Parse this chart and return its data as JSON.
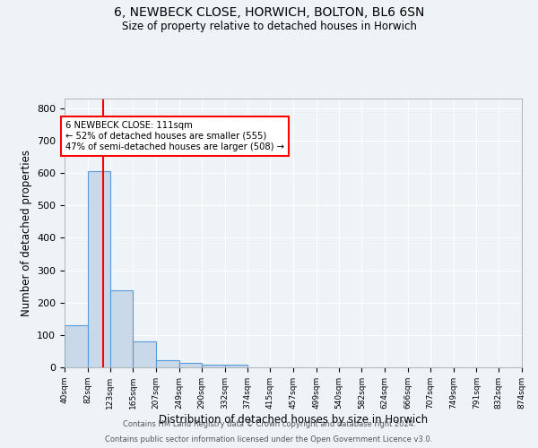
{
  "title_line1": "6, NEWBECK CLOSE, HORWICH, BOLTON, BL6 6SN",
  "title_line2": "Size of property relative to detached houses in Horwich",
  "xlabel": "Distribution of detached houses by size in Horwich",
  "ylabel": "Number of detached properties",
  "bin_edges": [
    40,
    82,
    123,
    165,
    207,
    249,
    290,
    332,
    374,
    415,
    457,
    499,
    540,
    582,
    624,
    666,
    707,
    749,
    791,
    832,
    874
  ],
  "bin_counts": [
    130,
    605,
    238,
    80,
    23,
    15,
    8,
    8,
    0,
    0,
    0,
    0,
    0,
    0,
    0,
    0,
    0,
    0,
    0,
    0
  ],
  "bar_color": "#c9d9ea",
  "bar_edge_color": "#5b9bd5",
  "red_line_x": 111,
  "annotation_text": "6 NEWBECK CLOSE: 111sqm\n← 52% of detached houses are smaller (555)\n47% of semi-detached houses are larger (508) →",
  "annotation_box_color": "white",
  "annotation_box_edge_color": "red",
  "red_line_color": "red",
  "background_color": "#eef3f8",
  "grid_color": "white",
  "ylim": [
    0,
    830
  ],
  "yticks": [
    0,
    100,
    200,
    300,
    400,
    500,
    600,
    700,
    800
  ],
  "tick_labels": [
    "40sqm",
    "82sqm",
    "123sqm",
    "165sqm",
    "207sqm",
    "249sqm",
    "290sqm",
    "332sqm",
    "374sqm",
    "415sqm",
    "457sqm",
    "499sqm",
    "540sqm",
    "582sqm",
    "624sqm",
    "666sqm",
    "707sqm",
    "749sqm",
    "791sqm",
    "832sqm",
    "874sqm"
  ],
  "footer_line1": "Contains HM Land Registry data © Crown copyright and database right 2024.",
  "footer_line2": "Contains public sector information licensed under the Open Government Licence v3.0."
}
